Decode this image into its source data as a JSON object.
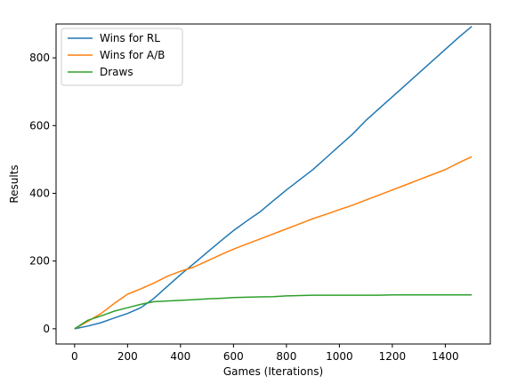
{
  "chart_data": {
    "type": "line",
    "title": "",
    "xlabel": "Games (Iterations)",
    "ylabel": "Results",
    "xlim": [
      -70,
      1570
    ],
    "ylim": [
      -45,
      900
    ],
    "xticks": [
      0,
      200,
      400,
      600,
      800,
      1000,
      1200,
      1400
    ],
    "yticks": [
      0,
      200,
      400,
      600,
      800
    ],
    "grid": false,
    "legend_position": "upper-left",
    "series": [
      {
        "name": "Wins for RL",
        "color": "#1f77b4",
        "x": [
          0,
          50,
          100,
          150,
          200,
          250,
          300,
          350,
          400,
          450,
          500,
          550,
          600,
          650,
          700,
          750,
          800,
          850,
          900,
          950,
          1000,
          1050,
          1100,
          1150,
          1200,
          1250,
          1300,
          1350,
          1400,
          1450,
          1500
        ],
        "y": [
          0,
          8,
          18,
          32,
          45,
          62,
          90,
          125,
          160,
          192,
          225,
          258,
          290,
          318,
          345,
          378,
          410,
          440,
          470,
          505,
          540,
          575,
          615,
          650,
          685,
          720,
          755,
          790,
          825,
          860,
          893
        ]
      },
      {
        "name": "Wins for A/B",
        "color": "#ff7f0e",
        "x": [
          0,
          50,
          100,
          150,
          200,
          250,
          300,
          350,
          400,
          450,
          500,
          550,
          600,
          650,
          700,
          750,
          800,
          850,
          900,
          950,
          1000,
          1050,
          1100,
          1150,
          1200,
          1250,
          1300,
          1350,
          1400,
          1450,
          1500
        ],
        "y": [
          0,
          22,
          45,
          75,
          102,
          118,
          135,
          155,
          170,
          182,
          200,
          218,
          235,
          250,
          265,
          280,
          295,
          310,
          325,
          338,
          352,
          365,
          380,
          395,
          410,
          425,
          440,
          455,
          470,
          490,
          508
        ]
      },
      {
        "name": "Draws",
        "color": "#2ca02c",
        "x": [
          0,
          50,
          100,
          150,
          200,
          250,
          300,
          350,
          400,
          450,
          500,
          550,
          600,
          650,
          700,
          750,
          800,
          850,
          900,
          950,
          1000,
          1050,
          1100,
          1150,
          1200,
          1250,
          1300,
          1350,
          1400,
          1450,
          1500
        ],
        "y": [
          0,
          25,
          38,
          52,
          62,
          72,
          80,
          82,
          84,
          86,
          88,
          90,
          92,
          93,
          94,
          95,
          97,
          98,
          99,
          99,
          99,
          99,
          99,
          99,
          100,
          100,
          100,
          100,
          100,
          100,
          100
        ]
      }
    ]
  }
}
